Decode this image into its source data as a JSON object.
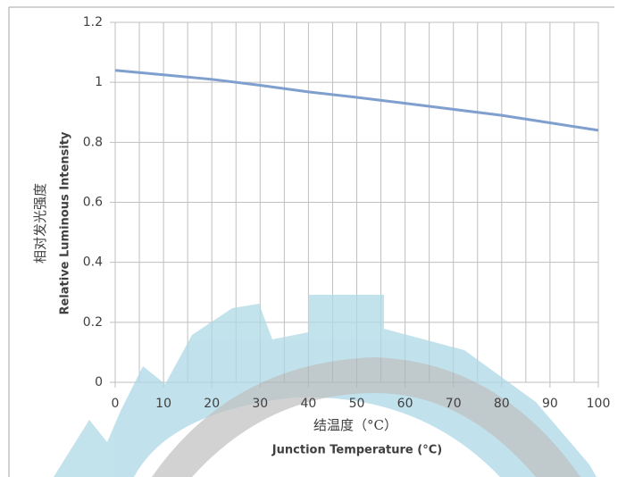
{
  "chart_data": {
    "type": "line",
    "x_label": "结温度（°C）",
    "x_label_en": "Junction Temperature (°C)",
    "y_label": "相对发光强度",
    "y_label_en": "Relative Luminous Intensity",
    "x": [
      0,
      10,
      20,
      30,
      40,
      50,
      60,
      70,
      80,
      90,
      100
    ],
    "series": [
      {
        "color": "#7f9fcf",
        "values": [
          1.04,
          1.025,
          1.01,
          0.99,
          0.968,
          0.95,
          0.93,
          0.91,
          0.89,
          0.865,
          0.84
        ]
      }
    ],
    "xlim": [
      0,
      100
    ],
    "xticks": [
      0,
      10,
      20,
      30,
      40,
      50,
      60,
      70,
      80,
      90,
      100
    ],
    "xminorticks": [
      5,
      15,
      25,
      35,
      45,
      55,
      65,
      75,
      85,
      95
    ],
    "ylim": [
      0,
      1.2
    ],
    "yticks": [
      0,
      0.2,
      0.4,
      0.6,
      0.8,
      1,
      1.2
    ],
    "grid": true
  }
}
